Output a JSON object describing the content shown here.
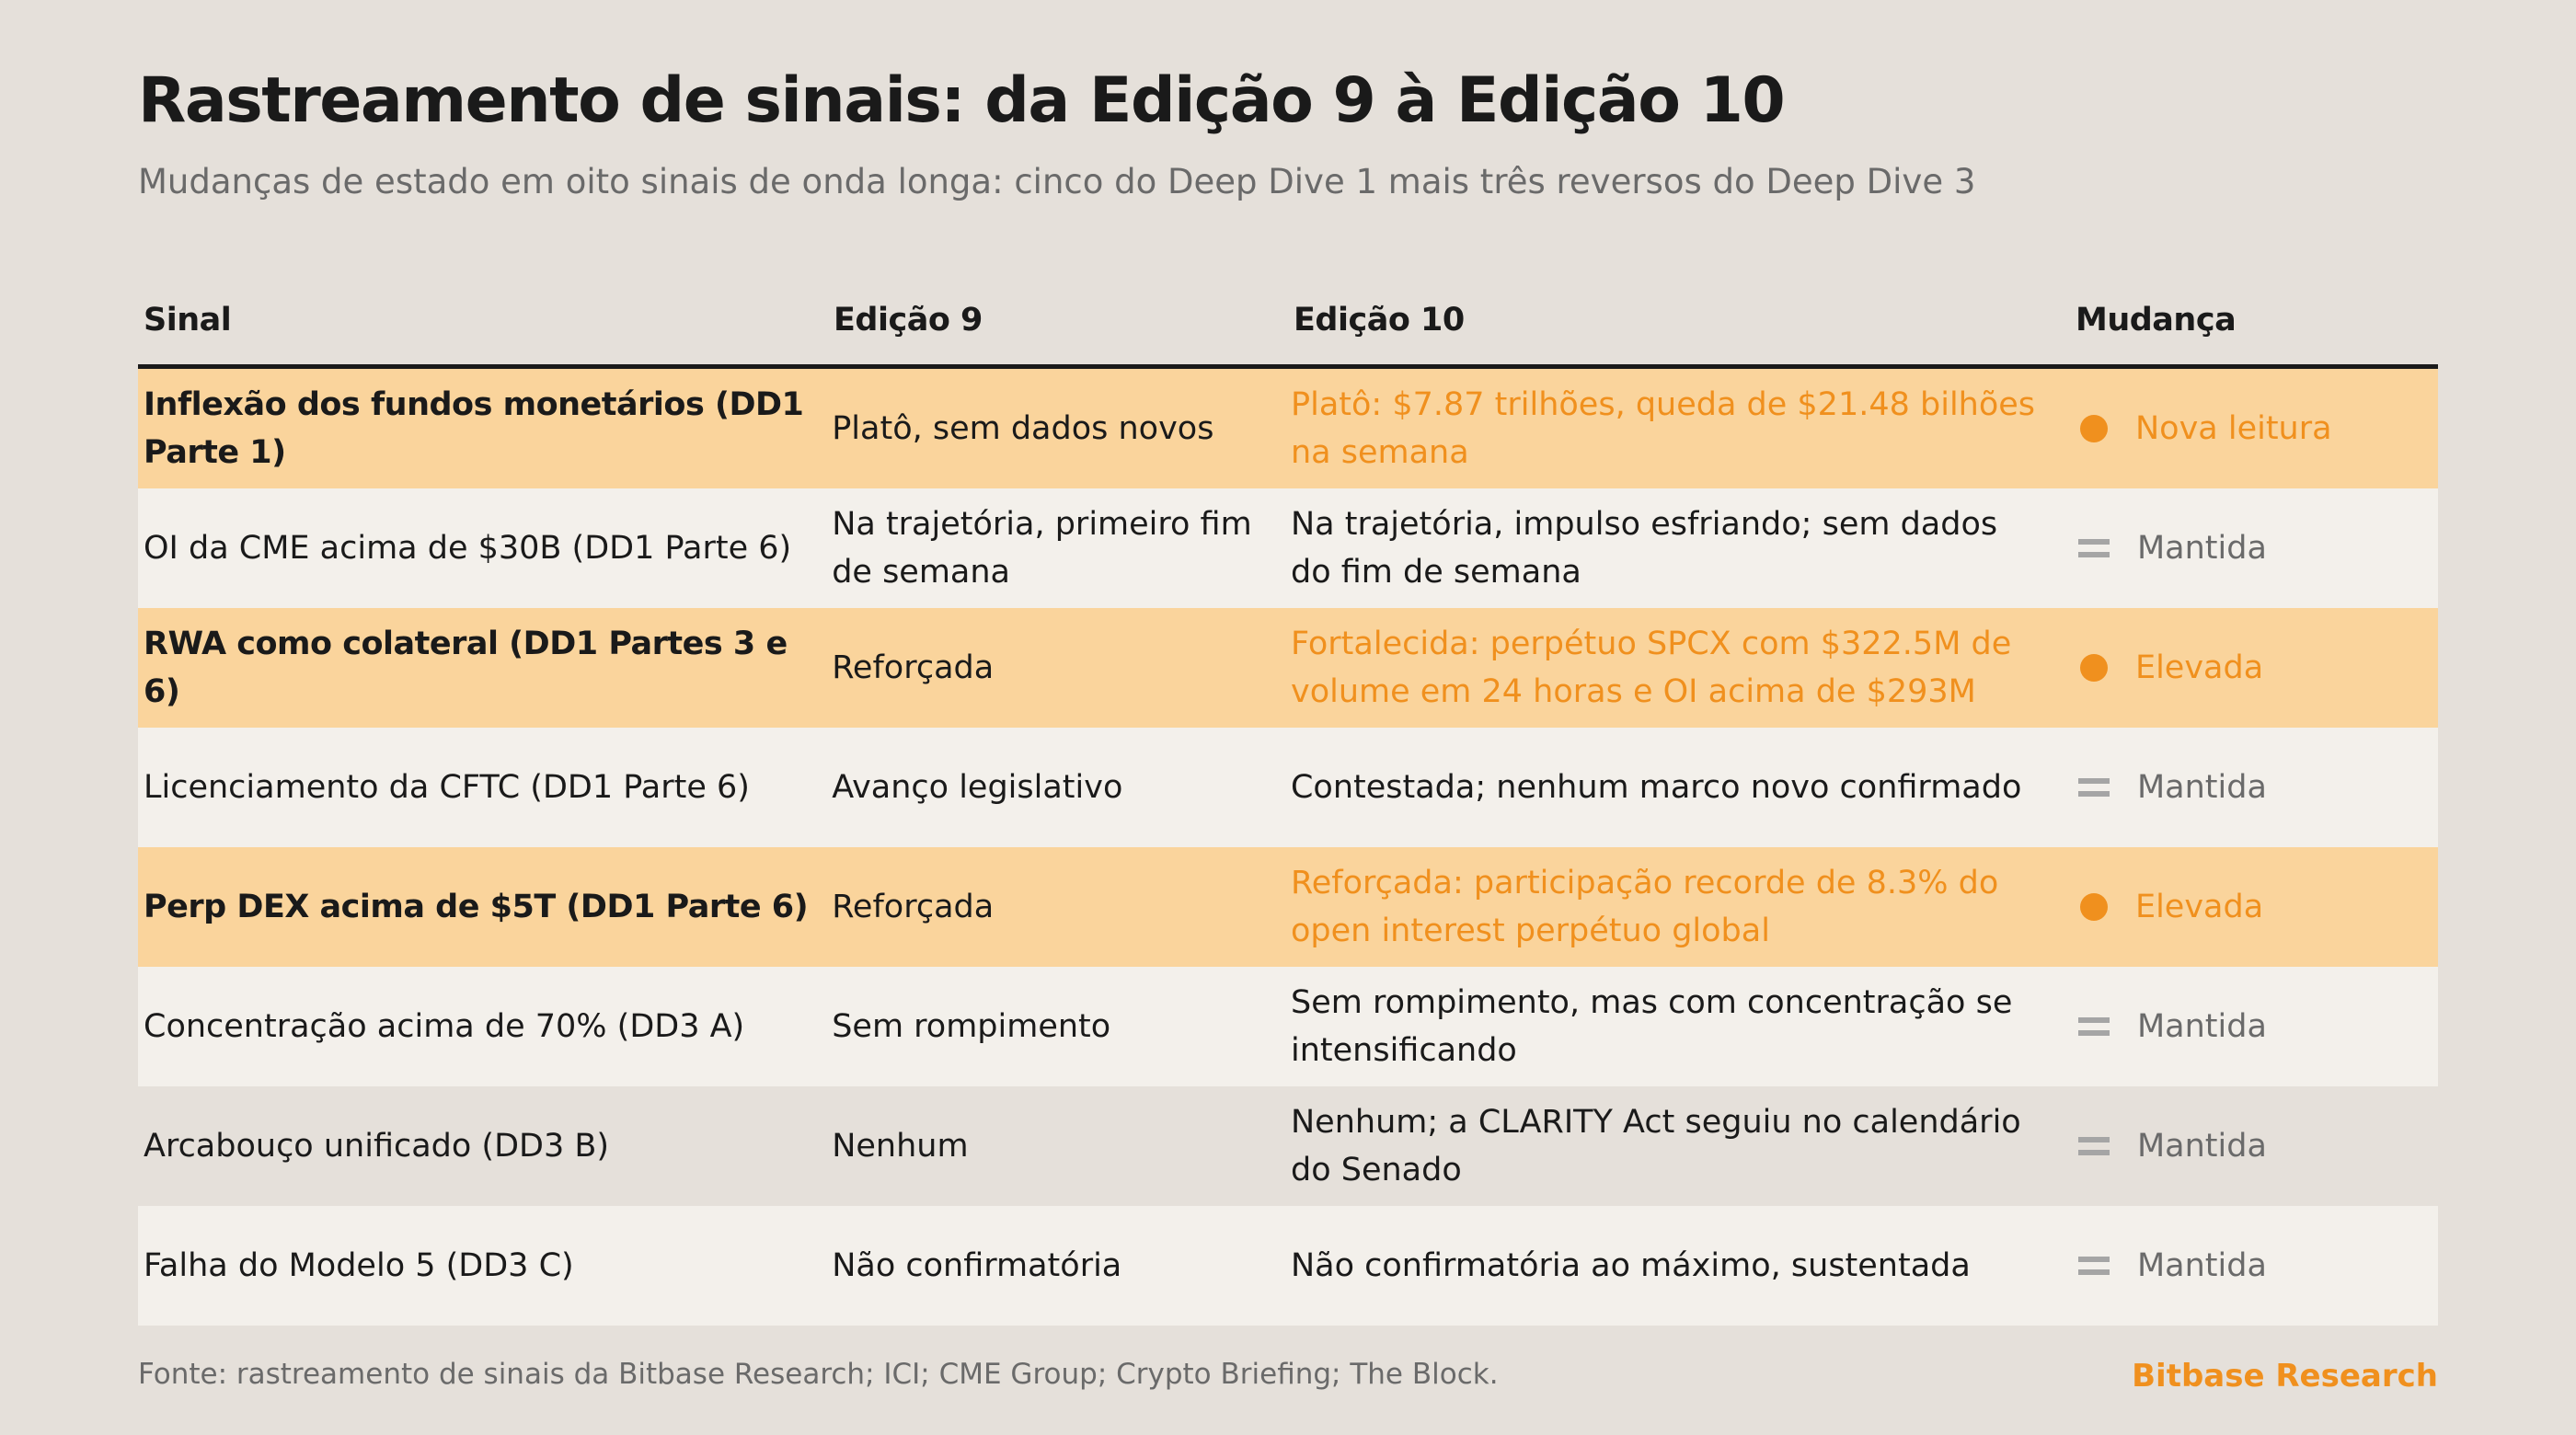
{
  "title": "Rastreamento de sinais: da Edição 9 à Edição 10",
  "subtitle": "Mudanças de estado em oito sinais de onda longa: cinco do Deep Dive 1 mais três reversos do Deep Dive 3",
  "headers": [
    "Sinal",
    "Edição 9",
    "Edição 10",
    "Mudança"
  ],
  "rows": [
    {
      "signal": "Inflexão dos fundos monetários (DD1 Parte 1)",
      "ed9": "Platô, sem dados novos",
      "ed10": "Platô: $7.87 trilhões, queda de $21.48 bilhões na semana",
      "change": "Nova leitura",
      "icon": "dot-icon"
    },
    {
      "signal": "OI da CME acima de $30B (DD1 Parte 6)",
      "ed9": "Na trajetória, primeiro fim de semana",
      "ed10": "Na trajetória, impulso esfriando; sem dados do fim de semana",
      "change": "Mantida",
      "icon": "equals-icon"
    },
    {
      "signal": "RWA como colateral (DD1 Partes 3 e 6)",
      "ed9": "Reforçada",
      "ed10": "Fortalecida: perpétuo SPCX com $322.5M de volume em 24 horas e OI acima de $293M",
      "change": "Elevada",
      "icon": "dot-icon"
    },
    {
      "signal": "Licenciamento da CFTC (DD1 Parte 6)",
      "ed9": "Avanço legislativo",
      "ed10": "Contestada; nenhum marco novo confirmado",
      "change": "Mantida",
      "icon": "equals-icon"
    },
    {
      "signal": "Perp DEX acima de $5T (DD1 Parte 6)",
      "ed9": "Reforçada",
      "ed10": "Reforçada: participação recorde de 8.3% do open interest perpétuo global",
      "change": "Elevada",
      "icon": "dot-icon"
    },
    {
      "signal": "Concentração acima de 70% (DD3 A)",
      "ed9": "Sem rompimento",
      "ed10": "Sem rompimento, mas com concentração se intensificando",
      "change": "Mantida",
      "icon": "equals-icon"
    },
    {
      "signal": "Arcabouço unificado (DD3 B)",
      "ed9": "Nenhum",
      "ed10": "Nenhum; a CLARITY Act seguiu no calendário do Senado",
      "change": "Mantida",
      "icon": "equals-icon"
    },
    {
      "signal": "Falha do Modelo 5 (DD3 C)",
      "ed9": "Não confirmatória",
      "ed10": "Não confirmatória ao máximo, sustentada",
      "change": "Mantida",
      "icon": "equals-icon"
    }
  ],
  "footer": "Fonte: rastreamento de sinais da Bitbase Research; ICI; CME Group; Crypto Briefing; The Block.",
  "brand": "Bitbase Research",
  "colors": {
    "highlight_row": "#fad49c",
    "accent": "#f0901e",
    "background": "#e5e0da",
    "row_light": "#f3f0eb"
  }
}
